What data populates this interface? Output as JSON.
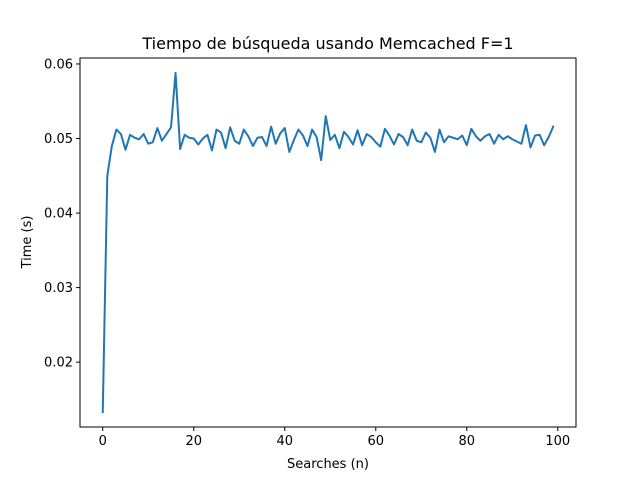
{
  "chart_data": {
    "type": "line",
    "title": "Tiempo de búsqueda usando Memcached F=1",
    "xlabel": "Searches (n)",
    "ylabel": "Time (s)",
    "xlim": [
      -5,
      104
    ],
    "ylim": [
      0.0113,
      0.0608
    ],
    "grid": false,
    "line_color": "#1f77b4",
    "xticks": [
      0,
      20,
      40,
      60,
      80,
      100
    ],
    "xtick_labels": [
      "0",
      "20",
      "40",
      "60",
      "80",
      "100"
    ],
    "yticks": [
      0.02,
      0.03,
      0.04,
      0.05,
      0.06
    ],
    "ytick_labels": [
      "0.02",
      "0.03",
      "0.04",
      "0.05",
      "0.06"
    ],
    "series": [
      {
        "x": [
          0,
          1,
          2,
          3,
          4,
          5,
          6,
          7,
          8,
          9,
          10,
          11,
          12,
          13,
          14,
          15,
          16,
          17,
          18,
          19,
          20,
          21,
          22,
          23,
          24,
          25,
          26,
          27,
          28,
          29,
          30,
          31,
          32,
          33,
          34,
          35,
          36,
          37,
          38,
          39,
          40,
          41,
          42,
          43,
          44,
          45,
          46,
          47,
          48,
          49,
          50,
          51,
          52,
          53,
          54,
          55,
          56,
          57,
          58,
          59,
          60,
          61,
          62,
          63,
          64,
          65,
          66,
          67,
          68,
          69,
          70,
          71,
          72,
          73,
          74,
          75,
          76,
          77,
          78,
          79,
          80,
          81,
          82,
          83,
          84,
          85,
          86,
          87,
          88,
          89,
          90,
          91,
          92,
          93,
          94,
          95,
          96,
          97,
          98,
          99
        ],
        "values": [
          0.0133,
          0.045,
          0.049,
          0.0512,
          0.0506,
          0.0485,
          0.0505,
          0.0501,
          0.0499,
          0.0506,
          0.0493,
          0.0495,
          0.0514,
          0.0497,
          0.0506,
          0.0515,
          0.0588,
          0.0486,
          0.0505,
          0.0501,
          0.05,
          0.0492,
          0.05,
          0.0505,
          0.0484,
          0.0512,
          0.0508,
          0.0487,
          0.0515,
          0.0497,
          0.0493,
          0.0512,
          0.0503,
          0.049,
          0.0501,
          0.0502,
          0.049,
          0.0516,
          0.0493,
          0.0507,
          0.0514,
          0.0482,
          0.0498,
          0.0512,
          0.0504,
          0.049,
          0.0512,
          0.0502,
          0.0471,
          0.053,
          0.0498,
          0.0505,
          0.0487,
          0.0509,
          0.0502,
          0.0492,
          0.0511,
          0.0491,
          0.0506,
          0.0502,
          0.0495,
          0.0489,
          0.0513,
          0.0504,
          0.0492,
          0.0506,
          0.0502,
          0.0491,
          0.0512,
          0.0497,
          0.0495,
          0.0508,
          0.0501,
          0.0482,
          0.0512,
          0.0495,
          0.0503,
          0.0501,
          0.0499,
          0.0504,
          0.0491,
          0.0513,
          0.0503,
          0.0497,
          0.0503,
          0.0506,
          0.0493,
          0.0505,
          0.0499,
          0.0503,
          0.0499,
          0.0496,
          0.0493,
          0.0518,
          0.0488,
          0.0504,
          0.0505,
          0.0491,
          0.0502,
          0.0516
        ]
      }
    ]
  }
}
